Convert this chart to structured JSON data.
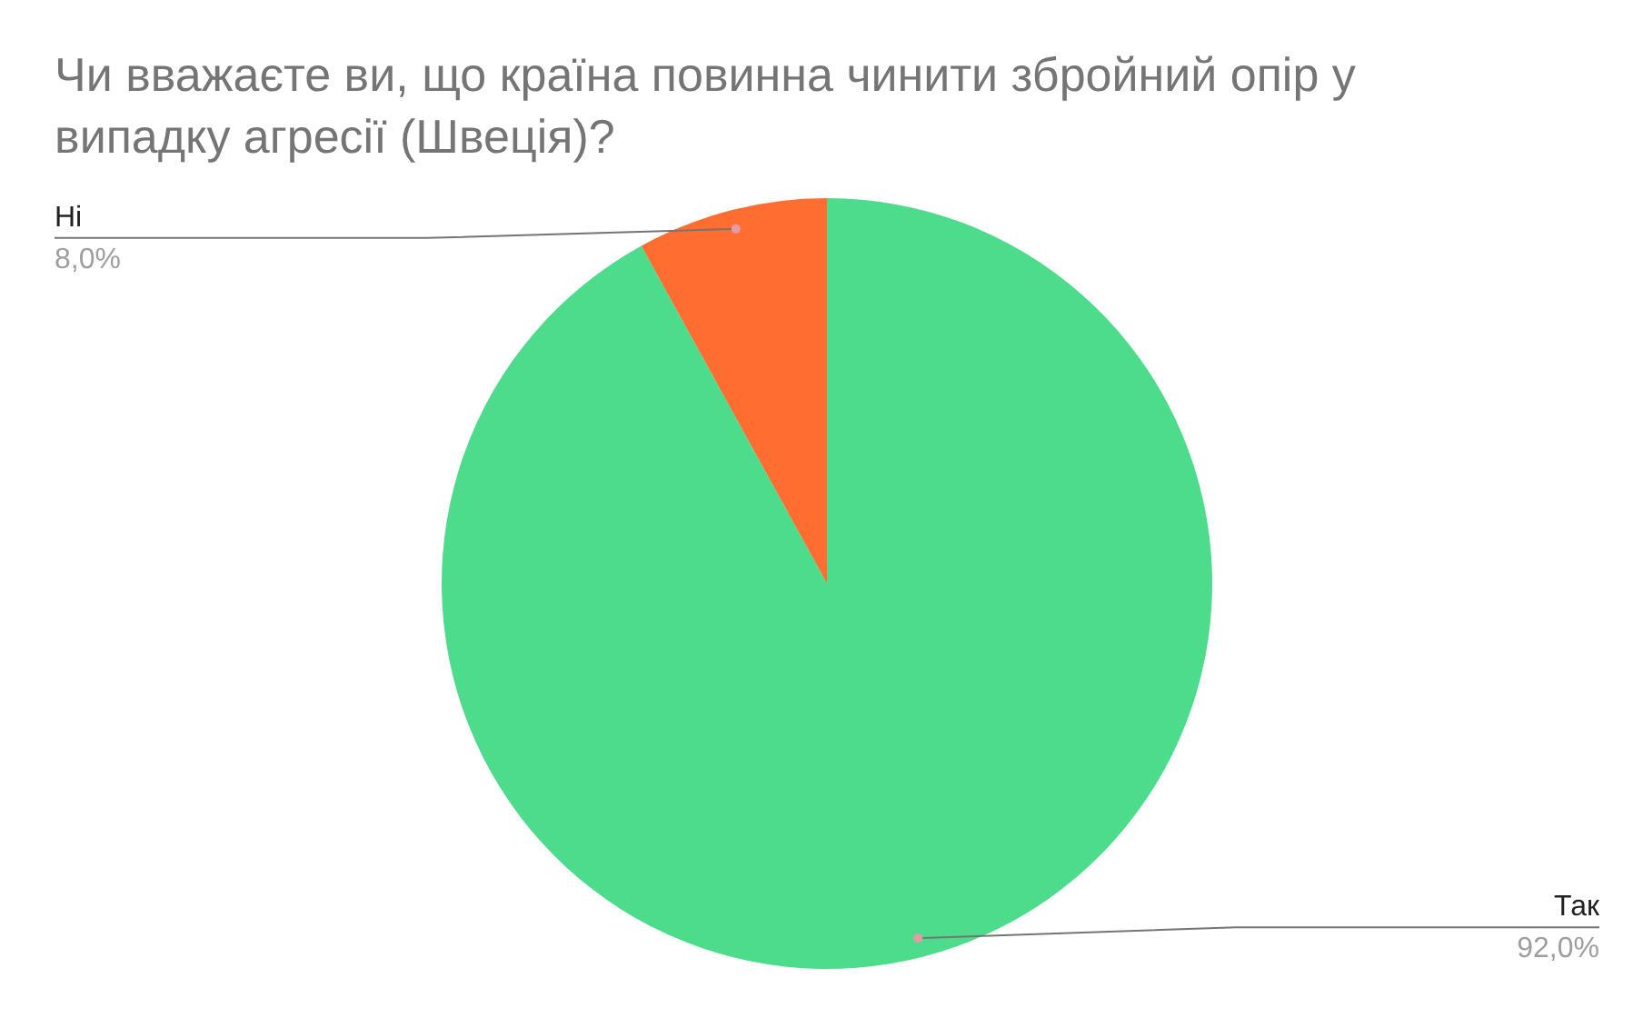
{
  "chart_data": {
    "type": "pie",
    "title": "Чи вважаєте ви, що країна повинна чинити збройний опір у випадку агресії (Швеція)?",
    "categories": [
      "Так",
      "Ні"
    ],
    "values": [
      92,
      8
    ],
    "colors": [
      "#4ddb8c",
      "#ff6d31"
    ],
    "value_labels": [
      "92,0%",
      "8,0%"
    ],
    "legend": false
  }
}
